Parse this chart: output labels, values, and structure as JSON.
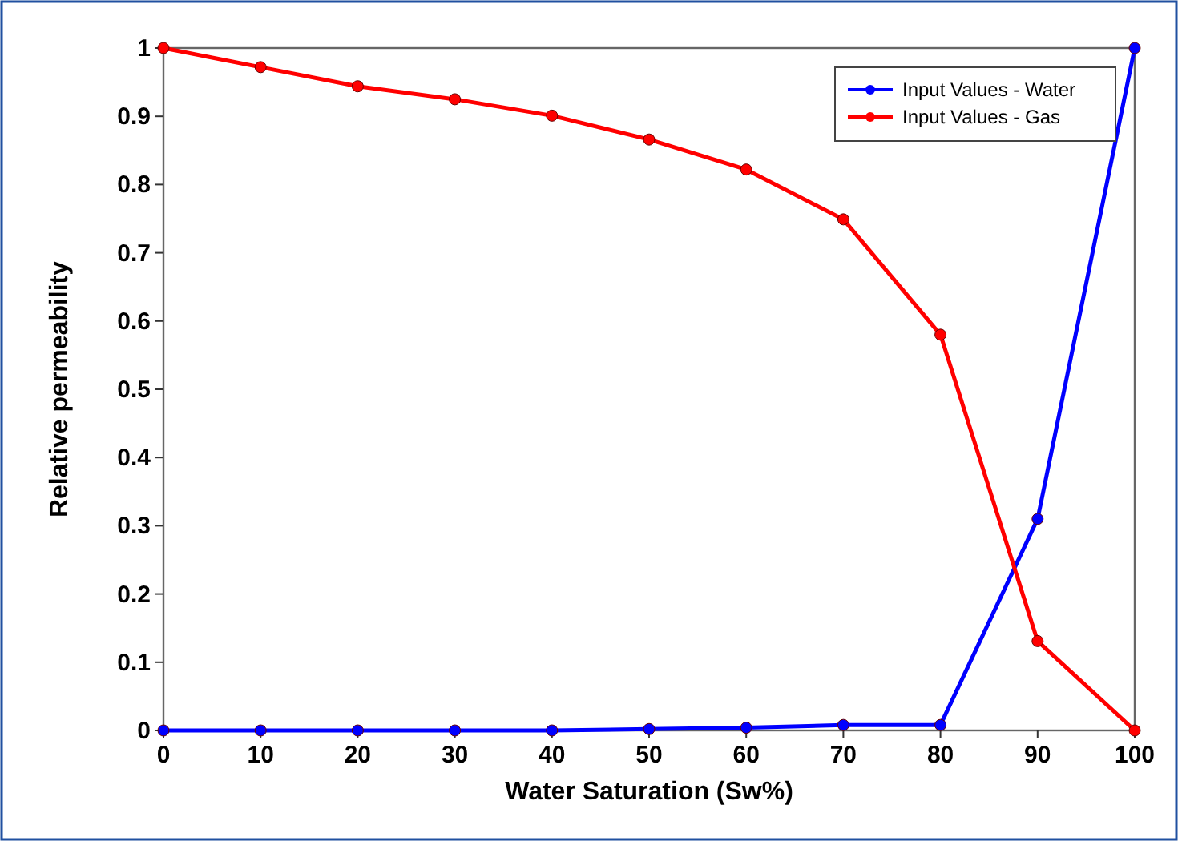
{
  "chart_data": {
    "type": "line",
    "xlabel": "Water Saturation (Sw%)",
    "ylabel": "Relative permeability",
    "x": [
      0,
      10,
      20,
      30,
      40,
      50,
      60,
      70,
      80,
      90,
      100
    ],
    "series": [
      {
        "name": "Input Values - Water",
        "color": "#0000ff",
        "values": [
          0,
          0,
          0,
          0,
          0,
          0.002,
          0.004,
          0.008,
          0.008,
          0.31,
          1
        ]
      },
      {
        "name": "Input Values - Gas",
        "color": "#ff0000",
        "values": [
          1,
          0.972,
          0.944,
          0.925,
          0.901,
          0.866,
          0.822,
          0.749,
          0.58,
          0.131,
          0
        ]
      }
    ],
    "xlim": [
      0,
      100
    ],
    "xticks": [
      0,
      10,
      20,
      30,
      40,
      50,
      60,
      70,
      80,
      90,
      100
    ],
    "ylim": [
      0,
      1
    ],
    "yticks": [
      0,
      0.1,
      0.2,
      0.3,
      0.4,
      0.5,
      0.6,
      0.7,
      0.8,
      0.9,
      1
    ],
    "grid": false,
    "legend": "top right",
    "marker": "circle",
    "line_style": "solid"
  }
}
